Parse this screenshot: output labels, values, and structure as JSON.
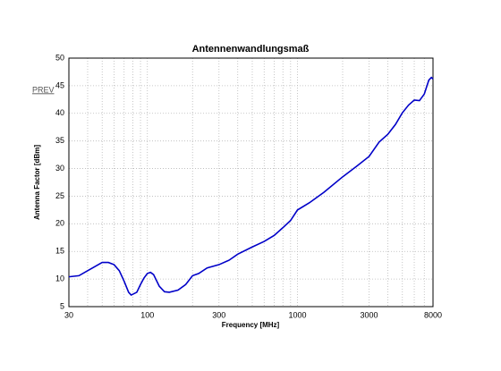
{
  "chart_data": {
    "type": "line",
    "title": "Antennenwandlungsmaß",
    "x_label": "Frequency [MHz]",
    "y_label": "Antenna Factor [dBm]",
    "annotation": "PREV",
    "x_scale": "log",
    "grid": true,
    "xlim": [
      30,
      8000
    ],
    "xticks": [
      30,
      100,
      300,
      1000,
      3000,
      8000
    ],
    "xminorticks": [
      40,
      50,
      60,
      70,
      80,
      90,
      200,
      400,
      500,
      600,
      700,
      800,
      900,
      2000,
      4000,
      5000,
      6000,
      7000
    ],
    "ylim": [
      5,
      50
    ],
    "yticks": [
      5,
      10,
      15,
      20,
      25,
      30,
      35,
      40,
      45,
      50
    ],
    "x": [
      30,
      35,
      40,
      45,
      50,
      55,
      60,
      65,
      70,
      75,
      78,
      85,
      90,
      95,
      100,
      105,
      110,
      120,
      130,
      140,
      160,
      180,
      200,
      220,
      250,
      300,
      350,
      400,
      500,
      600,
      700,
      800,
      900,
      1000,
      1200,
      1500,
      2000,
      2500,
      3000,
      3500,
      4000,
      4500,
      5000,
      5500,
      6000,
      6500,
      7000,
      7500,
      7800,
      8000
    ],
    "series": [
      {
        "name": "Antenna Factor",
        "color": "#0000c8",
        "values": [
          10.4,
          10.6,
          11.5,
          12.3,
          13.0,
          13.0,
          12.6,
          11.5,
          9.6,
          7.6,
          7.1,
          7.6,
          9.0,
          10.2,
          11.0,
          11.2,
          10.8,
          8.7,
          7.7,
          7.6,
          8.0,
          9.0,
          10.6,
          11.0,
          12.0,
          12.6,
          13.4,
          14.5,
          15.8,
          16.8,
          17.9,
          19.3,
          20.6,
          22.5,
          23.8,
          25.7,
          28.5,
          30.5,
          32.2,
          34.8,
          36.2,
          38.0,
          40.1,
          41.5,
          42.4,
          42.3,
          43.5,
          46.0,
          46.5,
          46.2
        ]
      }
    ]
  }
}
